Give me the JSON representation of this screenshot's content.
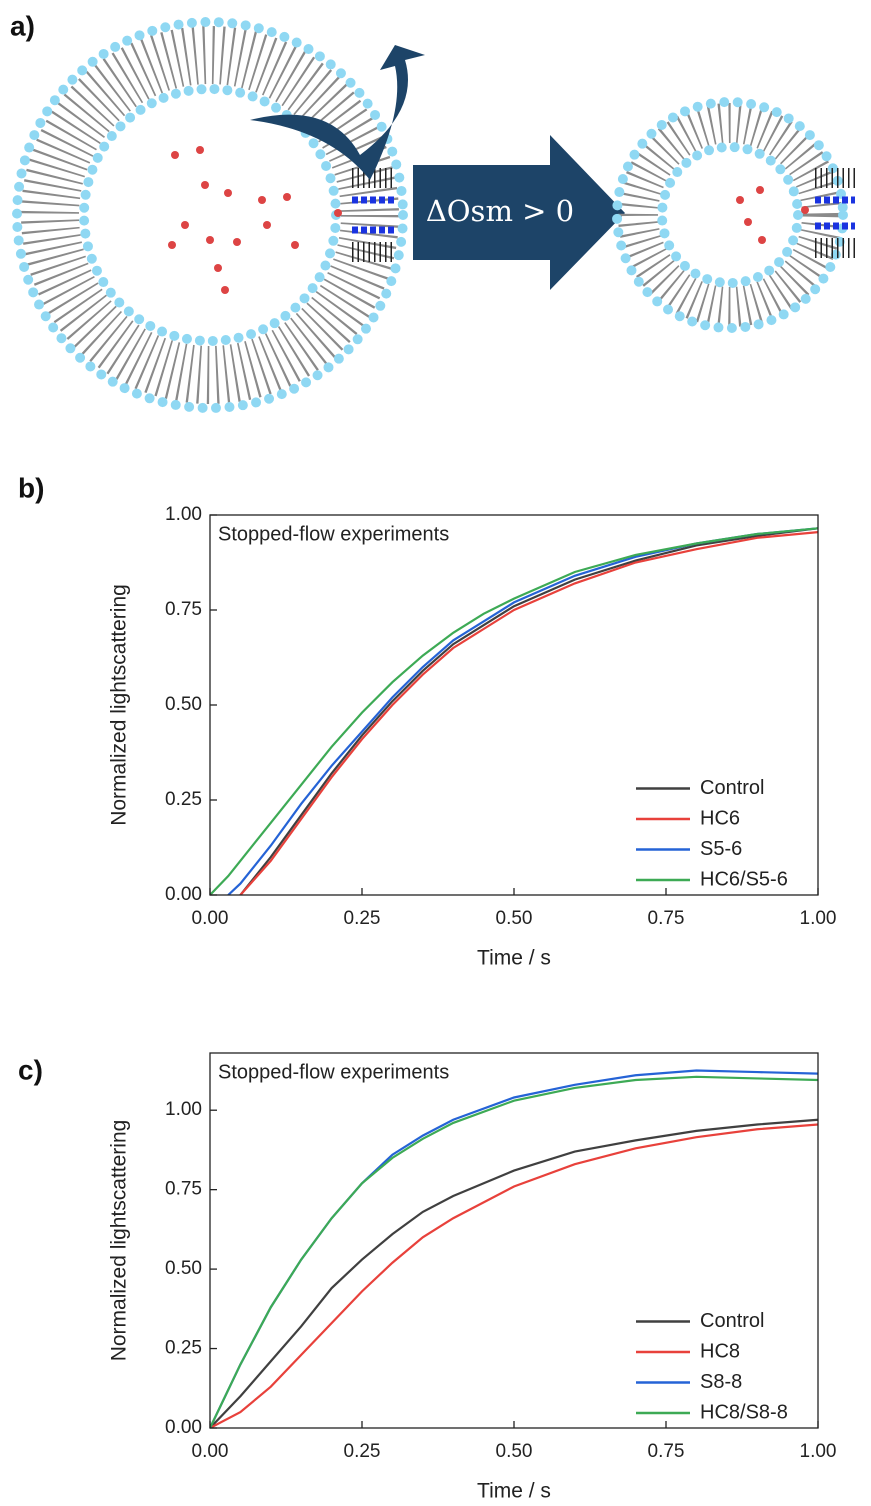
{
  "diagram": {
    "label": "a)",
    "arrow_text": "ΔOsm > 0"
  },
  "chart_data": [
    {
      "type": "line",
      "label": "b)",
      "title": "Stopped-flow experiments",
      "xlabel": "Time / s",
      "ylabel": "Normalized lightscattering",
      "x": [
        0,
        0.03,
        0.05,
        0.1,
        0.15,
        0.2,
        0.25,
        0.3,
        0.35,
        0.4,
        0.45,
        0.5,
        0.6,
        0.7,
        0.8,
        0.9,
        1.0
      ],
      "series": [
        {
          "name": "Control",
          "color": "#404040",
          "values": [
            null,
            null,
            0,
            0.1,
            0.21,
            0.32,
            0.42,
            0.51,
            0.59,
            0.66,
            0.71,
            0.76,
            0.83,
            0.88,
            0.92,
            0.945,
            0.965
          ]
        },
        {
          "name": "HC6",
          "color": "#e8413b",
          "values": [
            null,
            null,
            0,
            0.09,
            0.2,
            0.31,
            0.41,
            0.5,
            0.58,
            0.65,
            0.7,
            0.75,
            0.82,
            0.875,
            0.91,
            0.94,
            0.955
          ]
        },
        {
          "name": "S5-6",
          "color": "#2563d6",
          "values": [
            null,
            0,
            0.03,
            0.13,
            0.24,
            0.34,
            0.43,
            0.52,
            0.6,
            0.67,
            0.72,
            0.77,
            0.84,
            0.89,
            0.925,
            0.95,
            0.965
          ]
        },
        {
          "name": "HC6/S5-6",
          "color": "#3daa55",
          "values": [
            0,
            0.05,
            0.09,
            0.19,
            0.29,
            0.39,
            0.48,
            0.56,
            0.63,
            0.69,
            0.74,
            0.78,
            0.85,
            0.895,
            0.925,
            0.95,
            0.965
          ]
        }
      ],
      "xlim": [
        0,
        1
      ],
      "ylim": [
        0,
        1
      ],
      "xticks": [
        {
          "value": 0,
          "label": "0.00"
        },
        {
          "value": 0.25,
          "label": "0.25"
        },
        {
          "value": 0.5,
          "label": "0.50"
        },
        {
          "value": 0.75,
          "label": "0.75"
        },
        {
          "value": 1,
          "label": "1.00"
        }
      ],
      "yticks": [
        {
          "value": 0,
          "label": "0.00"
        },
        {
          "value": 0.25,
          "label": "0.25"
        },
        {
          "value": 0.5,
          "label": "0.50"
        },
        {
          "value": 0.75,
          "label": "0.75"
        },
        {
          "value": 1,
          "label": "1.00"
        }
      ],
      "legend": "lower right"
    },
    {
      "type": "line",
      "label": "c)",
      "title": "Stopped-flow experiments",
      "xlabel": "Time / s",
      "ylabel": "Normalized lightscattering",
      "x": [
        0,
        0.05,
        0.1,
        0.15,
        0.2,
        0.25,
        0.3,
        0.35,
        0.4,
        0.5,
        0.6,
        0.7,
        0.8,
        0.9,
        1.0
      ],
      "series": [
        {
          "name": "Control",
          "color": "#404040",
          "values": [
            0,
            0.1,
            0.21,
            0.32,
            0.44,
            0.53,
            0.61,
            0.68,
            0.73,
            0.81,
            0.87,
            0.905,
            0.935,
            0.955,
            0.97
          ]
        },
        {
          "name": "HC8",
          "color": "#e8413b",
          "values": [
            0,
            0.05,
            0.13,
            0.23,
            0.33,
            0.43,
            0.52,
            0.6,
            0.66,
            0.76,
            0.83,
            0.88,
            0.915,
            0.94,
            0.955
          ]
        },
        {
          "name": "S8-8",
          "color": "#2563d6",
          "values": [
            0,
            0.2,
            0.38,
            0.53,
            0.66,
            0.77,
            0.86,
            0.92,
            0.97,
            1.04,
            1.08,
            1.11,
            1.125,
            1.12,
            1.115
          ]
        },
        {
          "name": "HC8/S8-8",
          "color": "#3daa55",
          "values": [
            0,
            0.2,
            0.38,
            0.53,
            0.66,
            0.77,
            0.85,
            0.91,
            0.96,
            1.03,
            1.07,
            1.095,
            1.105,
            1.1,
            1.095
          ]
        }
      ],
      "xlim": [
        0,
        1
      ],
      "ylim": [
        0,
        1.18
      ],
      "xticks": [
        {
          "value": 0,
          "label": "0.00"
        },
        {
          "value": 0.25,
          "label": "0.25"
        },
        {
          "value": 0.5,
          "label": "0.50"
        },
        {
          "value": 0.75,
          "label": "0.75"
        },
        {
          "value": 1,
          "label": "1.00"
        }
      ],
      "yticks": [
        {
          "value": 0,
          "label": "0.00"
        },
        {
          "value": 0.25,
          "label": "0.25"
        },
        {
          "value": 0.5,
          "label": "0.50"
        },
        {
          "value": 0.75,
          "label": "0.75"
        },
        {
          "value": 1,
          "label": "1.00"
        }
      ],
      "legend": "lower right"
    }
  ]
}
